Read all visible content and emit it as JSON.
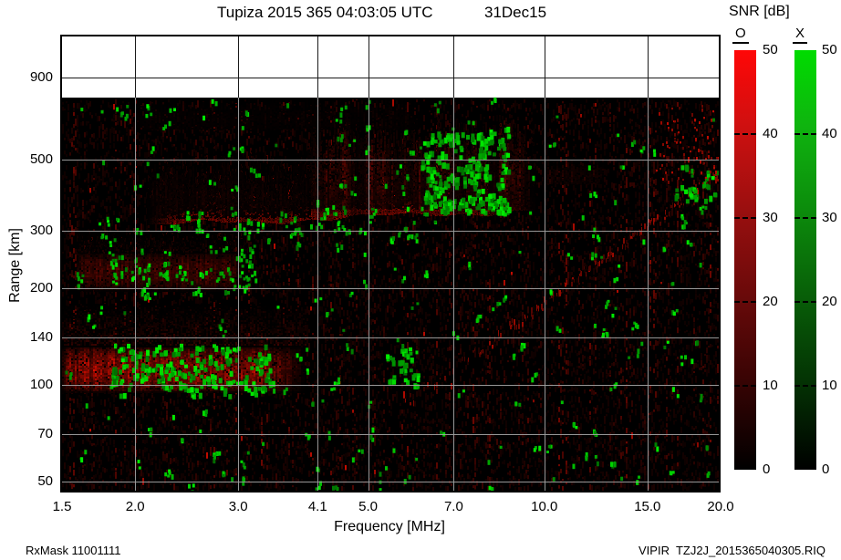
{
  "header": {
    "title": "Tupiza 2015 365 04:03:05 UTC",
    "date": "31Dec15"
  },
  "colorbar": {
    "title": "SNR [dB]",
    "o_label": "O",
    "x_label": "X",
    "o_color": "#ff0000",
    "x_color": "#00dd00",
    "min": 0,
    "max": 50,
    "ticks": [
      50,
      40,
      30,
      20,
      10,
      0
    ]
  },
  "footer": {
    "left": "RxMask 11001111",
    "right": "VIPIR  TZJ2J_2015365040305.RIQ"
  },
  "chart_data": {
    "type": "heatmap",
    "title": "Tupiza 2015 365 04:03:05 UTC 31Dec15",
    "xlabel": "Frequency [MHz]",
    "ylabel": "Range [km]",
    "x_scale": "log",
    "y_scale": "log",
    "xlim": [
      1.5,
      20.0
    ],
    "x_ticks": [
      1.5,
      2.0,
      3.0,
      4.1,
      5.0,
      7.0,
      10.0,
      15.0,
      20.0
    ],
    "x_tick_labels": [
      "1.5",
      "2.0",
      "3.0",
      "4.1",
      "5.0",
      "7.0",
      "10.0",
      "15.0",
      "20.0"
    ],
    "y_ticks": [
      900,
      500,
      300,
      200,
      140,
      100,
      70,
      50
    ],
    "y_tick_labels": [
      "900",
      "500",
      "300",
      "200",
      "140",
      "100",
      "70",
      "50"
    ],
    "max_range_km": 782,
    "snr_db_range": [
      0,
      50
    ],
    "legend": {
      "O": "red (ordinary)",
      "X": "green (extraordinary)"
    },
    "grid": true,
    "features": [
      {
        "name": "background-red-noise",
        "type": "noise",
        "f": [
          1.5,
          20
        ],
        "r": [
          47,
          780
        ],
        "level": 0.5
      },
      {
        "name": "E-region-echo",
        "type": "blob",
        "f": [
          1.5,
          3.3
        ],
        "fade_f": 3.9,
        "r": [
          95,
          132
        ],
        "fade_r": 178,
        "peak": 0.88
      },
      {
        "name": "E-echo-green-patches",
        "type": "green",
        "f": [
          1.8,
          3.4
        ],
        "r": [
          95,
          133
        ],
        "count": 115,
        "size": 4
      },
      {
        "name": "E-multiple-echo",
        "type": "blob",
        "f": [
          1.6,
          2.9
        ],
        "fade_f": 3.1,
        "r": [
          196,
          258
        ],
        "fade_r": 300,
        "peak": 0.4
      },
      {
        "name": "E-multiple-green-speckles",
        "type": "green",
        "f": [
          1.75,
          3.2
        ],
        "r": [
          190,
          270
        ],
        "count": 52,
        "size": 3
      },
      {
        "name": "F-trace-band",
        "type": "band",
        "f": [
          2.1,
          9.7
        ],
        "r_bottom": [
          312,
          348
        ],
        "spread_km": 70,
        "peak": 0.8
      },
      {
        "name": "F-left-haze",
        "type": "haze",
        "f": [
          2.1,
          4.0
        ],
        "r": [
          330,
          530
        ],
        "peak": 0.17,
        "hot_f": []
      },
      {
        "name": "spread-F-plume",
        "type": "haze",
        "f": [
          3.95,
          9.6
        ],
        "r": [
          352,
          690
        ],
        "peak": 0.42,
        "hot_f": [
          [
            4.3,
            4.65
          ],
          [
            4.95,
            5.45
          ],
          [
            6.5,
            7.2
          ],
          [
            8.4,
            9.15
          ]
        ]
      },
      {
        "name": "top-faint-streaks",
        "type": "haze",
        "f": [
          2.0,
          6.2
        ],
        "r": [
          620,
          775
        ],
        "peak": 0.1,
        "hot_f": []
      },
      {
        "name": "patch-10-12.5MHz",
        "type": "haze",
        "f": [
          10.0,
          12.6
        ],
        "r": [
          420,
          500
        ],
        "peak": 0.3,
        "hot_f": []
      },
      {
        "name": "dark-lanes",
        "type": "lanes",
        "lanes_f": [
          [
            4.68,
            4.92
          ],
          [
            7.0,
            7.35
          ],
          [
            8.05,
            8.35
          ]
        ],
        "r": [
          265,
          700
        ],
        "alpha": 0.45
      },
      {
        "name": "oblique-diagonal-trace",
        "type": "diagonal",
        "f": [
          5.8,
          20
        ],
        "r": [
          88,
          460
        ],
        "peak": 0.62
      },
      {
        "name": "plume-green-cluster",
        "type": "green",
        "f": [
          6.2,
          8.6
        ],
        "r": [
          350,
          620
        ],
        "count": 150,
        "size": 4
      },
      {
        "name": "band-green-speckles",
        "type": "green",
        "f": [
          2.3,
          6.5
        ],
        "r": [
          285,
          370
        ],
        "count": 46,
        "size": 3
      },
      {
        "name": "green-cluster-5.6MHz-110km",
        "type": "green",
        "f": [
          5.4,
          6.0
        ],
        "r": [
          100,
          132
        ],
        "count": 22,
        "size": 4
      },
      {
        "name": "diagonal-green-dots",
        "type": "green",
        "f": [
          16.5,
          20
        ],
        "r": [
          380,
          480
        ],
        "count": 14,
        "size": 4
      },
      {
        "name": "right-edge-red-speckles",
        "type": "speckle",
        "f": [
          15.5,
          20
        ],
        "r": [
          420,
          740
        ],
        "count": 90
      },
      {
        "name": "sparse-green-noise",
        "type": "green",
        "f": [
          1.52,
          19.8
        ],
        "r": [
          48,
          770
        ],
        "count": 240,
        "size": 3
      }
    ]
  }
}
